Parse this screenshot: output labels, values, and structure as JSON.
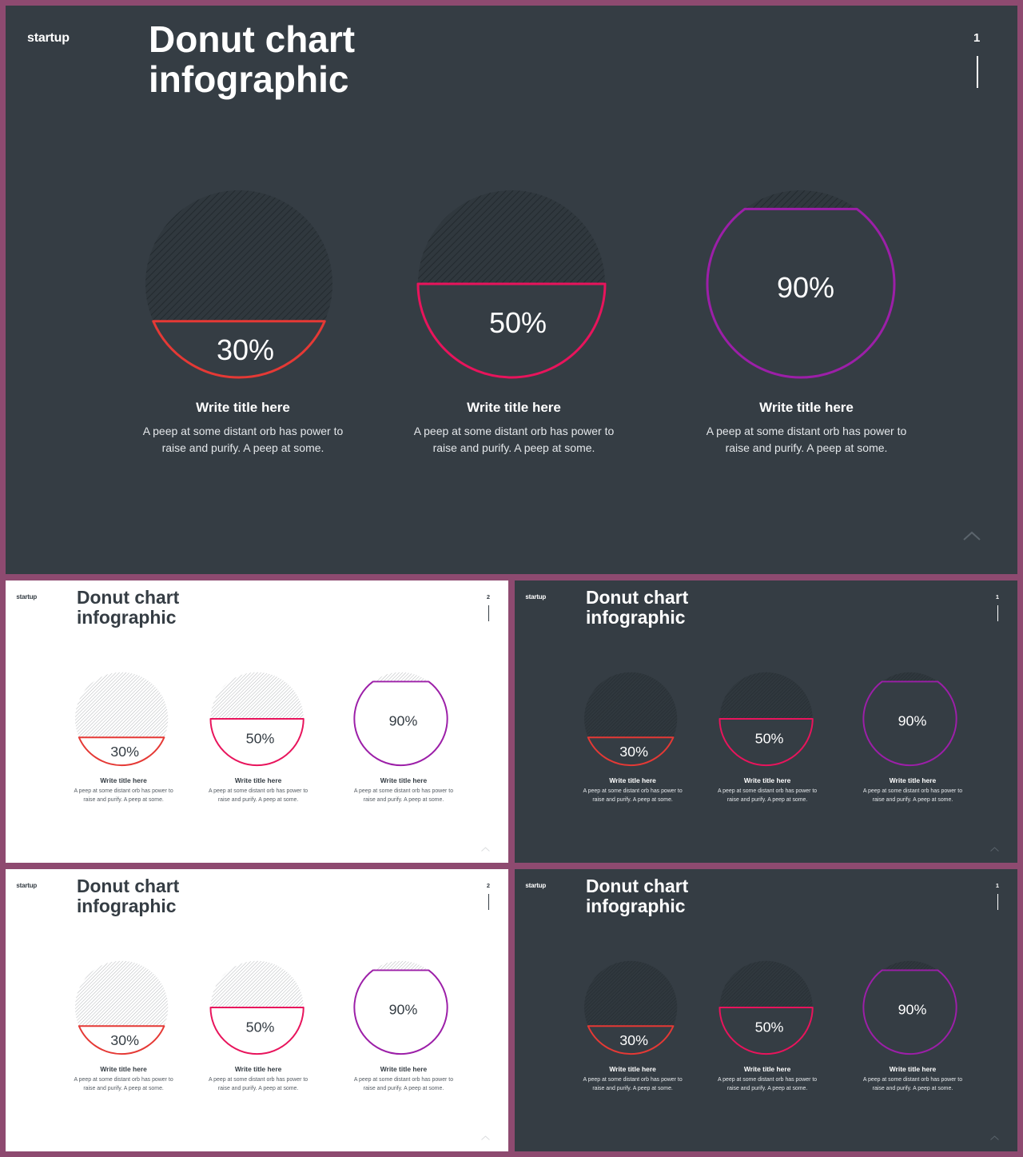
{
  "brand": "startup",
  "title_line1": "Donut chart",
  "title_line2": "infographic",
  "chart_data": {
    "type": "pie",
    "categories": [
      "30%",
      "50%",
      "90%"
    ],
    "values": [
      30,
      50,
      90
    ],
    "colors": [
      "#e53935",
      "#e8145c",
      "#9c1fa8"
    ]
  },
  "items": [
    {
      "value_label": "30%",
      "title": "Write title here",
      "desc_line1": "A peep at some distant orb has power to",
      "desc_line2": "raise and purify. A peep at some."
    },
    {
      "value_label": "50%",
      "title": "Write title here",
      "desc_line1": "A peep at some distant orb has power to",
      "desc_line2": "raise and purify. A peep at some."
    },
    {
      "value_label": "90%",
      "title": "Write title here",
      "desc_line1": "A peep at some distant orb has power to",
      "desc_line2": "raise and purify. A peep at some."
    }
  ],
  "slides": [
    {
      "theme": "dark",
      "page": "1"
    },
    {
      "theme": "light",
      "page": "2"
    },
    {
      "theme": "dark",
      "page": "1"
    },
    {
      "theme": "light",
      "page": "2"
    },
    {
      "theme": "dark",
      "page": "1"
    }
  ],
  "colors": {
    "frame": "#8e4a70",
    "dark_bg": "#353d44",
    "light_bg": "#ffffff"
  },
  "icons": {
    "corner": "chevron-up-icon"
  }
}
